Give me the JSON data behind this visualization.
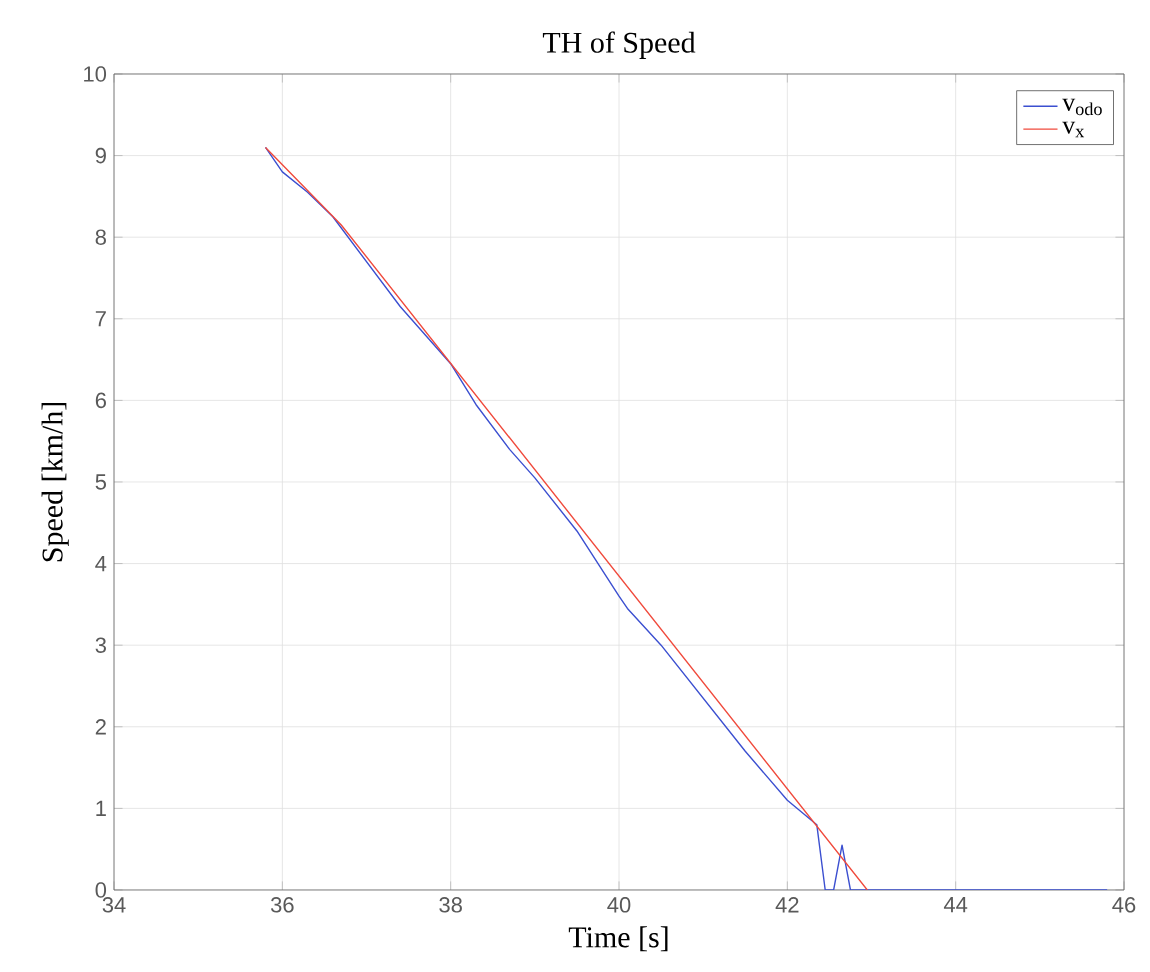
{
  "chart_data": {
    "type": "line",
    "title": "TH of Speed",
    "xlabel": "Time [s]",
    "ylabel": "Speed [km/h]",
    "xlim": [
      34,
      46
    ],
    "ylim": [
      0,
      10
    ],
    "xticks": [
      34,
      36,
      38,
      40,
      42,
      44,
      46
    ],
    "yticks": [
      0,
      1,
      2,
      3,
      4,
      5,
      6,
      7,
      8,
      9,
      10
    ],
    "grid": true,
    "legend": "top right",
    "series": [
      {
        "name": "v$_{odo}$",
        "color": "#3b4fd0",
        "x": [
          35.8,
          36.0,
          36.3,
          36.6,
          37.0,
          37.4,
          38.0,
          38.3,
          38.7,
          39.0,
          39.5,
          40.0,
          40.1,
          40.5,
          41.0,
          41.5,
          42.0,
          42.35,
          42.45,
          42.55,
          42.65,
          42.75,
          45.8
        ],
        "values": [
          9.1,
          8.8,
          8.55,
          8.25,
          7.7,
          7.15,
          6.45,
          5.95,
          5.4,
          5.05,
          4.4,
          3.6,
          3.45,
          3.0,
          2.35,
          1.7,
          1.1,
          0.8,
          0,
          0,
          0.55,
          0,
          0
        ]
      },
      {
        "name": "v$_{x}$",
        "color": "#f04a3c",
        "x": [
          35.8,
          36.7,
          42.95
        ],
        "values": [
          9.1,
          8.15,
          0
        ]
      }
    ]
  }
}
